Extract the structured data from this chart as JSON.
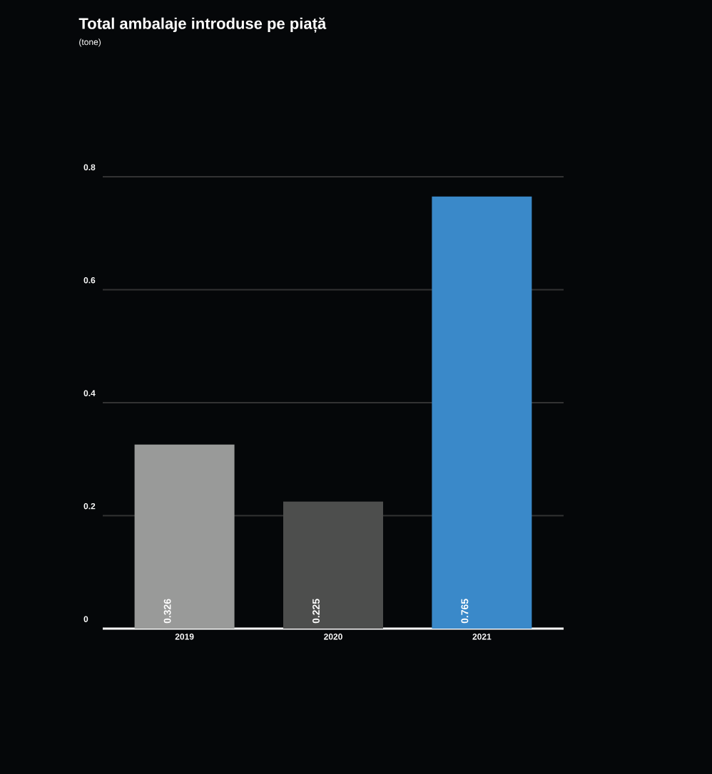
{
  "chart_data": {
    "type": "bar",
    "title": "Total ambalaje introduse pe piață",
    "subtitle": "(tone)",
    "categories": [
      "2019",
      "2020",
      "2021"
    ],
    "values": [
      0.326,
      0.225,
      0.765
    ],
    "colors": [
      "#999a99",
      "#4d4e4d",
      "#3a89c9"
    ],
    "ylim": [
      0,
      0.8
    ],
    "yticks": [
      0,
      0.2,
      0.4,
      0.6,
      0.8
    ],
    "grid": "y",
    "data_labels": true
  }
}
